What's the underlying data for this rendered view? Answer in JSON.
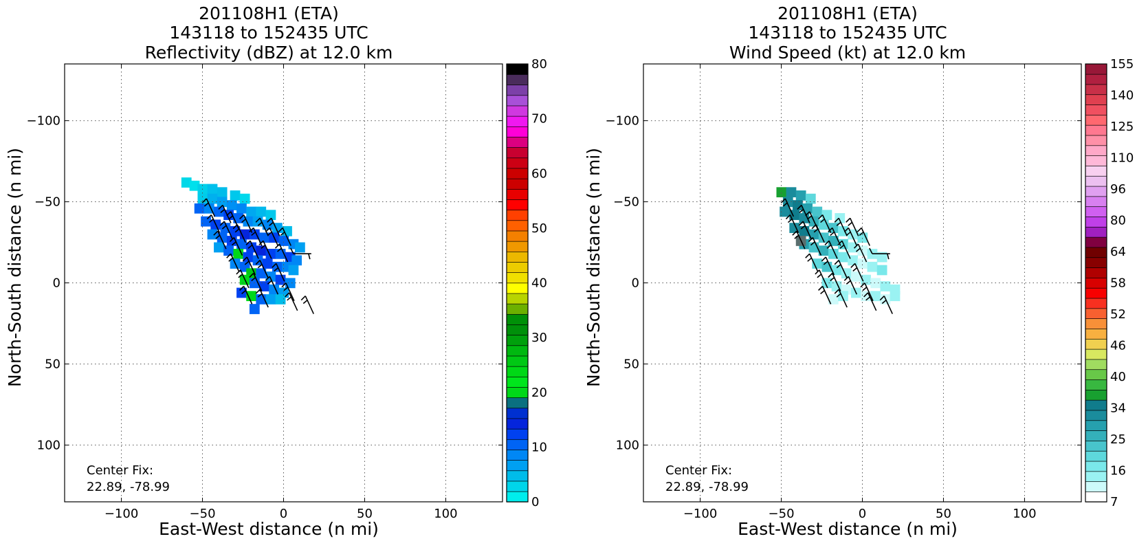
{
  "chart_data": [
    {
      "type": "heatmap",
      "title": [
        "201108H1 (ETA)",
        "143118 to 152435 UTC",
        "Reflectivity (dBZ) at 12.0 km"
      ],
      "xlabel": "East-West distance (n mi)",
      "ylabel": "North-South distance (n mi)",
      "xlim": [
        -135,
        135
      ],
      "ylim": [
        -135,
        135
      ],
      "xticks": [
        "−100",
        "−50",
        "0",
        "50",
        "100"
      ],
      "yticks": [
        "−100",
        "−50",
        "0",
        "50",
        "100"
      ],
      "grid": true,
      "annotation": [
        "Center Fix:",
        "22.89, -78.99"
      ],
      "colorbar": {
        "ticks": [
          "0",
          "10",
          "20",
          "30",
          "40",
          "50",
          "60",
          "70",
          "80"
        ],
        "colors": [
          "#00eded",
          "#00d5ea",
          "#00bcea",
          "#00a0f2",
          "#0087f5",
          "#0064f5",
          "#0041f0",
          "#0525dc",
          "#0030d0",
          "#0a7080",
          "#00d818",
          "#00e51c",
          "#00d816",
          "#00c814",
          "#00b810",
          "#00a00c",
          "#00900a",
          "#009008",
          "#6cb000",
          "#b8d400",
          "#ffff00",
          "#f0e000",
          "#eccc00",
          "#ecb800",
          "#f09800",
          "#f48000",
          "#ff6000",
          "#ff4000",
          "#ff0000",
          "#e80000",
          "#cc0000",
          "#cc0000",
          "#cc0014",
          "#c80030",
          "#dc0080",
          "#ff00d8",
          "#f018f0",
          "#d038e0",
          "#a850d8",
          "#7c40a8",
          "#4a2c5c",
          "#000000"
        ]
      },
      "field": {
        "cells": [
          [
            -60,
            62,
            "#00d8e8"
          ],
          [
            -55,
            60,
            "#00e0ec"
          ],
          [
            -50,
            58,
            "#00d0ea"
          ],
          [
            -44,
            58,
            "#00c0ec"
          ],
          [
            -38,
            56,
            "#00bcea"
          ],
          [
            -30,
            54,
            "#00c8ec"
          ],
          [
            -24,
            52,
            "#00d8ec"
          ],
          [
            -50,
            52,
            "#00ccea"
          ],
          [
            -44,
            52,
            "#00b0ee"
          ],
          [
            -38,
            50,
            "#00a0f2"
          ],
          [
            -32,
            48,
            "#0090f4"
          ],
          [
            -26,
            46,
            "#0087f5"
          ],
          [
            -20,
            44,
            "#00a8f0"
          ],
          [
            -14,
            44,
            "#00b8ec"
          ],
          [
            -8,
            42,
            "#00c8ec"
          ],
          [
            -52,
            46,
            "#0064f5"
          ],
          [
            -46,
            46,
            "#0087f5"
          ],
          [
            -40,
            44,
            "#0064f5"
          ],
          [
            -34,
            42,
            "#0041f0"
          ],
          [
            -28,
            40,
            "#0064f5"
          ],
          [
            -22,
            38,
            "#0087f5"
          ],
          [
            -16,
            38,
            "#00a0f2"
          ],
          [
            -10,
            36,
            "#0087f5"
          ],
          [
            -4,
            34,
            "#00a0f2"
          ],
          [
            2,
            32,
            "#00bcea"
          ],
          [
            -48,
            38,
            "#0064f5"
          ],
          [
            -42,
            36,
            "#0041f0"
          ],
          [
            -36,
            34,
            "#0064f5"
          ],
          [
            -30,
            32,
            "#0041f0"
          ],
          [
            -24,
            30,
            "#0525dc"
          ],
          [
            -18,
            30,
            "#0041f0"
          ],
          [
            -12,
            28,
            "#0064f5"
          ],
          [
            -6,
            28,
            "#0041f0"
          ],
          [
            0,
            26,
            "#0064f5"
          ],
          [
            6,
            24,
            "#0087f5"
          ],
          [
            10,
            22,
            "#00a0f2"
          ],
          [
            -44,
            30,
            "#0087f5"
          ],
          [
            -38,
            28,
            "#0064f5"
          ],
          [
            -32,
            26,
            "#0041f0"
          ],
          [
            -26,
            24,
            "#0064f5"
          ],
          [
            -20,
            22,
            "#0041f0"
          ],
          [
            -14,
            20,
            "#0525dc"
          ],
          [
            -8,
            18,
            "#0041f0"
          ],
          [
            -2,
            18,
            "#0064f5"
          ],
          [
            4,
            16,
            "#0041f0"
          ],
          [
            8,
            14,
            "#0087f5"
          ],
          [
            -40,
            22,
            "#00a0f2"
          ],
          [
            -34,
            20,
            "#0064f5"
          ],
          [
            -28,
            18,
            "#00d818"
          ],
          [
            -22,
            16,
            "#0041f0"
          ],
          [
            -16,
            14,
            "#0064f5"
          ],
          [
            -10,
            12,
            "#0041f0"
          ],
          [
            -4,
            10,
            "#0064f5"
          ],
          [
            2,
            10,
            "#0087f5"
          ],
          [
            6,
            8,
            "#00a0f2"
          ],
          [
            -30,
            12,
            "#0087f5"
          ],
          [
            -24,
            10,
            "#0064f5"
          ],
          [
            -20,
            6,
            "#00c814"
          ],
          [
            -14,
            6,
            "#0064f5"
          ],
          [
            -8,
            4,
            "#0087f5"
          ],
          [
            -2,
            2,
            "#0041f0"
          ],
          [
            4,
            0,
            "#0087f5"
          ],
          [
            -24,
            2,
            "#00d818"
          ],
          [
            -18,
            0,
            "#0064f5"
          ],
          [
            -12,
            -2,
            "#0041f0"
          ],
          [
            -6,
            -4,
            "#0087f5"
          ],
          [
            0,
            -6,
            "#00a0f2"
          ],
          [
            -26,
            -6,
            "#0041f0"
          ],
          [
            -20,
            -8,
            "#00d818"
          ],
          [
            -14,
            -10,
            "#0064f5"
          ],
          [
            -8,
            -10,
            "#00a0f2"
          ],
          [
            -2,
            -10,
            "#00bcea"
          ],
          [
            -18,
            -16,
            "#0064f5"
          ]
        ],
        "cell_size": 6
      },
      "barbs": [
        [
          -45,
          46,
          "n"
        ],
        [
          -35,
          42,
          "n"
        ],
        [
          -30,
          38,
          "n"
        ],
        [
          -22,
          36,
          "n"
        ],
        [
          -12,
          34,
          "n"
        ],
        [
          -5,
          34,
          "n"
        ],
        [
          -42,
          36,
          "n"
        ],
        [
          -34,
          32,
          "n"
        ],
        [
          -26,
          30,
          "n"
        ],
        [
          -16,
          28,
          "n"
        ],
        [
          -6,
          28,
          "n"
        ],
        [
          2,
          28,
          "n"
        ],
        [
          -38,
          26,
          "n"
        ],
        [
          -28,
          22,
          "n"
        ],
        [
          -18,
          20,
          "n"
        ],
        [
          -10,
          20,
          "n"
        ],
        [
          0,
          18,
          "n"
        ],
        [
          12,
          18,
          "e"
        ],
        [
          -30,
          12,
          "n"
        ],
        [
          -20,
          10,
          "n"
        ],
        [
          -12,
          8,
          "n"
        ],
        [
          -2,
          6,
          "n"
        ],
        [
          -24,
          2,
          "n"
        ],
        [
          -16,
          0,
          "n"
        ],
        [
          -6,
          -2,
          "n"
        ],
        [
          4,
          -6,
          "n"
        ],
        [
          -22,
          -8,
          "n"
        ],
        [
          -12,
          -10,
          "n"
        ],
        [
          6,
          -12,
          "n"
        ],
        [
          16,
          -14,
          "n"
        ]
      ]
    },
    {
      "type": "heatmap",
      "title": [
        "201108H1 (ETA)",
        "143118 to 152435 UTC",
        "Wind Speed (kt) at 12.0 km"
      ],
      "xlabel": "East-West distance (n mi)",
      "ylabel": "North-South distance (n mi)",
      "xlim": [
        -135,
        135
      ],
      "ylim": [
        -135,
        135
      ],
      "xticks": [
        "−100",
        "−50",
        "0",
        "50",
        "100"
      ],
      "yticks": [
        "−100",
        "−50",
        "0",
        "50",
        "100"
      ],
      "grid": true,
      "annotation": [
        "Center Fix:",
        "22.89, -78.99"
      ],
      "colorbar": {
        "ticks": [
          "7",
          "16",
          "25",
          "34",
          "40",
          "46",
          "52",
          "58",
          "64",
          "80",
          "96",
          "110",
          "125",
          "140",
          "155"
        ],
        "colors": [
          "#ffffff",
          "#cdfafa",
          "#9af2f2",
          "#7ae8ea",
          "#5ed8dc",
          "#48c4cc",
          "#34b0ba",
          "#26a0ae",
          "#1a8c9c",
          "#107c8c",
          "#18a030",
          "#38b840",
          "#68c848",
          "#a0dc60",
          "#d8e860",
          "#f0d050",
          "#f8b040",
          "#f89038",
          "#f86030",
          "#f83020",
          "#f80000",
          "#d80000",
          "#b00000",
          "#880000",
          "#700000",
          "#800040",
          "#a020c0",
          "#c040e8",
          "#d060f0",
          "#d880f0",
          "#e0a0f0",
          "#ecc0f0",
          "#f8d0f0",
          "#ffb8d8",
          "#ffa8c8",
          "#ff90a8",
          "#ff7890",
          "#ff6870",
          "#f05060",
          "#e04050",
          "#c83048",
          "#b02040",
          "#981838"
        ]
      },
      "field": {
        "cells": [
          [
            -50,
            56,
            "#18a030"
          ],
          [
            -44,
            56,
            "#1a8c9c"
          ],
          [
            -38,
            54,
            "#26a0ae"
          ],
          [
            -32,
            52,
            "#5ed8dc"
          ],
          [
            -46,
            50,
            "#1a8c9c"
          ],
          [
            -40,
            48,
            "#107c8c"
          ],
          [
            -34,
            46,
            "#26a0ae"
          ],
          [
            -28,
            44,
            "#48c4cc"
          ],
          [
            -22,
            42,
            "#7ae8ea"
          ],
          [
            -14,
            40,
            "#9af2f2"
          ],
          [
            -48,
            44,
            "#1a8c9c"
          ],
          [
            -42,
            42,
            "#107c8c"
          ],
          [
            -36,
            40,
            "#1a8c9c"
          ],
          [
            -30,
            38,
            "#34b0ba"
          ],
          [
            -24,
            36,
            "#5ed8dc"
          ],
          [
            -18,
            34,
            "#48c4cc"
          ],
          [
            -12,
            32,
            "#7ae8ea"
          ],
          [
            -6,
            30,
            "#9af2f2"
          ],
          [
            0,
            28,
            "#7ae8ea"
          ],
          [
            -42,
            34,
            "#1a8c9c"
          ],
          [
            -36,
            32,
            "#107c8c"
          ],
          [
            -30,
            30,
            "#26a0ae"
          ],
          [
            -24,
            28,
            "#48c4cc"
          ],
          [
            -18,
            26,
            "#34b0ba"
          ],
          [
            -12,
            24,
            "#5ed8dc"
          ],
          [
            -6,
            22,
            "#9af2f2"
          ],
          [
            0,
            20,
            "#cdfafa"
          ],
          [
            6,
            18,
            "#9af2f2"
          ],
          [
            12,
            16,
            "#9af2f2"
          ],
          [
            -36,
            24,
            "#26a0ae"
          ],
          [
            -30,
            22,
            "#48c4cc"
          ],
          [
            -24,
            20,
            "#34b0ba"
          ],
          [
            -18,
            18,
            "#5ed8dc"
          ],
          [
            -12,
            16,
            "#7ae8ea"
          ],
          [
            -6,
            14,
            "#9af2f2"
          ],
          [
            0,
            12,
            "#cdfafa"
          ],
          [
            6,
            10,
            "#9af2f2"
          ],
          [
            12,
            8,
            "#7ae8ea"
          ],
          [
            -28,
            12,
            "#5ed8dc"
          ],
          [
            -22,
            10,
            "#48c4cc"
          ],
          [
            -16,
            8,
            "#7ae8ea"
          ],
          [
            -10,
            6,
            "#9af2f2"
          ],
          [
            -4,
            4,
            "#cdfafa"
          ],
          [
            2,
            2,
            "#9af2f2"
          ],
          [
            8,
            0,
            "#cdfafa"
          ],
          [
            14,
            -2,
            "#9af2f2"
          ],
          [
            20,
            -4,
            "#9af2f2"
          ],
          [
            -22,
            0,
            "#7ae8ea"
          ],
          [
            -16,
            -2,
            "#9af2f2"
          ],
          [
            -10,
            -4,
            "#cdfafa"
          ],
          [
            -4,
            -6,
            "#9af2f2"
          ],
          [
            2,
            -8,
            "#cdfafa"
          ],
          [
            8,
            -8,
            "#9af2f2"
          ],
          [
            14,
            -10,
            "#cdfafa"
          ],
          [
            20,
            -8,
            "#9af2f2"
          ],
          [
            -18,
            -10,
            "#cdfafa"
          ],
          [
            -12,
            -8,
            "#9af2f2"
          ],
          [
            -38,
            26,
            "#5a6e6e"
          ]
        ],
        "cell_size": 6
      },
      "barbs": [
        [
          -45,
          46,
          "n"
        ],
        [
          -35,
          42,
          "n"
        ],
        [
          -30,
          38,
          "n"
        ],
        [
          -22,
          36,
          "n"
        ],
        [
          -12,
          34,
          "n"
        ],
        [
          -5,
          34,
          "n"
        ],
        [
          -42,
          36,
          "n"
        ],
        [
          -34,
          32,
          "n"
        ],
        [
          -26,
          30,
          "n"
        ],
        [
          -16,
          28,
          "n"
        ],
        [
          -6,
          28,
          "n"
        ],
        [
          2,
          28,
          "n"
        ],
        [
          -38,
          26,
          "n"
        ],
        [
          -28,
          22,
          "n"
        ],
        [
          -18,
          20,
          "n"
        ],
        [
          -10,
          20,
          "n"
        ],
        [
          0,
          18,
          "n"
        ],
        [
          12,
          18,
          "e"
        ],
        [
          -30,
          12,
          "n"
        ],
        [
          -20,
          10,
          "n"
        ],
        [
          -12,
          8,
          "n"
        ],
        [
          -2,
          6,
          "n"
        ],
        [
          -24,
          2,
          "n"
        ],
        [
          -16,
          0,
          "n"
        ],
        [
          -6,
          -2,
          "n"
        ],
        [
          4,
          -6,
          "n"
        ],
        [
          -22,
          -8,
          "n"
        ],
        [
          -12,
          -10,
          "n"
        ],
        [
          6,
          -12,
          "n"
        ],
        [
          16,
          -14,
          "n"
        ]
      ]
    }
  ]
}
